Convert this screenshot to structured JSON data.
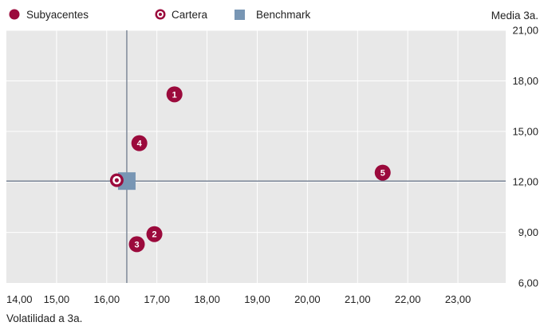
{
  "chart_data": {
    "type": "scatter",
    "xlabel": "Volatilidad a 3a.",
    "ylabel": "Media 3a.",
    "xlim": [
      14.0,
      24.0
    ],
    "ylim": [
      6.0,
      21.0
    ],
    "x_ticks": [
      "14,00",
      "15,00",
      "16,00",
      "17,00",
      "18,00",
      "19,00",
      "20,00",
      "21,00",
      "22,00",
      "23,00"
    ],
    "y_ticks": [
      "6,00",
      "9,00",
      "12,00",
      "15,00",
      "18,00",
      "21,00"
    ],
    "x_tick_values": [
      14,
      15,
      16,
      17,
      18,
      19,
      20,
      21,
      22,
      23
    ],
    "y_tick_values": [
      6,
      9,
      12,
      15,
      18,
      21
    ],
    "grid": true,
    "legend_position": "top",
    "legend": [
      {
        "label": "Subyacentes",
        "marker": "filled-circle",
        "color": "#9b0a3c"
      },
      {
        "label": "Cartera",
        "marker": "ring-circle",
        "color": "#9b0a3c"
      },
      {
        "label": "Benchmark",
        "marker": "square",
        "color": "#7896b4"
      }
    ],
    "series": [
      {
        "name": "Subyacentes",
        "points": [
          {
            "label": "1",
            "x": 17.35,
            "y": 17.2
          },
          {
            "label": "2",
            "x": 16.95,
            "y": 8.9
          },
          {
            "label": "3",
            "x": 16.6,
            "y": 8.3
          },
          {
            "label": "4",
            "x": 16.65,
            "y": 14.3
          },
          {
            "label": "5",
            "x": 21.5,
            "y": 12.55
          }
        ]
      },
      {
        "name": "Cartera",
        "points": [
          {
            "x": 16.2,
            "y": 12.1
          }
        ]
      },
      {
        "name": "Benchmark",
        "points": [
          {
            "x": 16.4,
            "y": 12.05
          }
        ]
      }
    ],
    "reference_lines": {
      "x": 16.4,
      "y": 12.05
    },
    "colors": {
      "subyacentes": "#9b0a3c",
      "cartera": "#9b0a3c",
      "benchmark": "#7896b4",
      "plot_bg": "#e8e8e8",
      "grid": "#ffffff",
      "ref_line": "#6e7a8c"
    }
  }
}
